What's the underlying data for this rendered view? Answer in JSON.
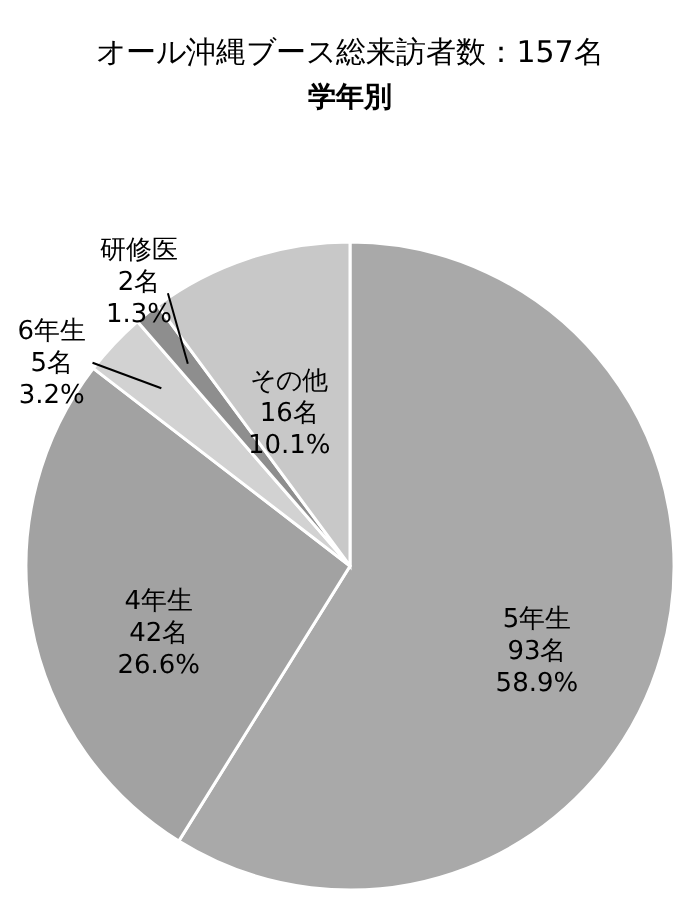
{
  "chart_data": {
    "type": "pie",
    "title": "オール沖縄ブース総来訪者数：157名",
    "subtitle": "学年別",
    "categories": [
      "5年生",
      "4年生",
      "6年生",
      "研修医",
      "その他"
    ],
    "values": [
      93,
      42,
      5,
      2,
      16
    ],
    "colors": [
      "#a9a9a9",
      "#a2a2a2",
      "#d2d2d2",
      "#8e8e8e",
      "#c8c8c8"
    ],
    "value_labels": [
      "93名\n58.9%",
      "42名\n26.6%",
      "5名\n3.2%",
      "2名\n1.3%",
      "16名\n10.1%"
    ]
  }
}
